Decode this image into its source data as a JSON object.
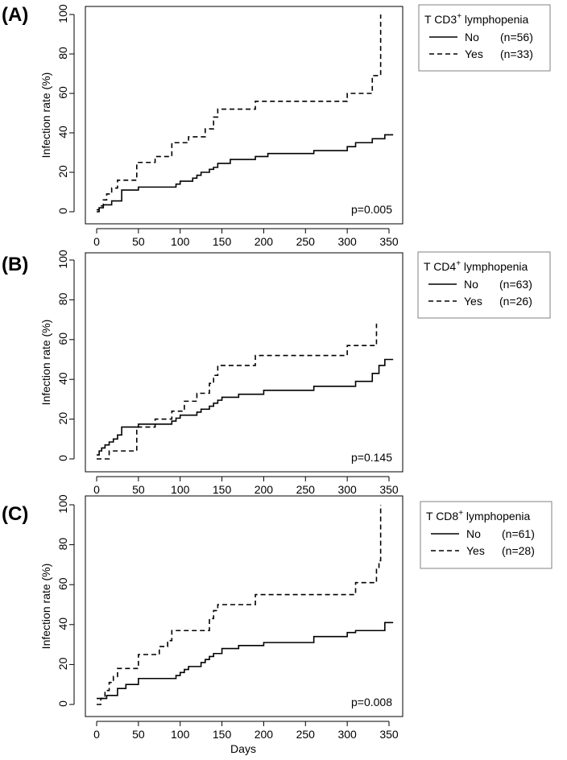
{
  "shared": {
    "xlabel": "Days",
    "ylabel": "Infection rate (%)",
    "xticks": [
      "0",
      "50",
      "100",
      "150",
      "200",
      "250",
      "300",
      "350"
    ],
    "yticks": [
      "0",
      "20",
      "40",
      "60",
      "80",
      "100"
    ]
  },
  "chart_data": [
    {
      "type": "line",
      "step": true,
      "panel": "(A)",
      "legend_title": "T CD3",
      "legend_sup": "+",
      "legend_suffix": " lymphopenia",
      "xlim": [
        0,
        350
      ],
      "ylim": [
        0,
        100
      ],
      "xlabel": "Days",
      "ylabel": "Infection rate (%)",
      "p_value": "p=0.005",
      "series": [
        {
          "name": "No",
          "n": "(n=56)",
          "style": "solid",
          "x": [
            0,
            3,
            8,
            12,
            18,
            25,
            30,
            38,
            50,
            70,
            85,
            95,
            100,
            105,
            110,
            115,
            120,
            125,
            130,
            135,
            140,
            145,
            150,
            160,
            170,
            190,
            205,
            220,
            240,
            260,
            290,
            300,
            310,
            330,
            345,
            355
          ],
          "y": [
            0,
            2,
            3.5,
            3.5,
            5.5,
            5.5,
            11,
            11,
            12.5,
            12.5,
            12.5,
            14,
            15.5,
            15.5,
            15.5,
            17,
            18.5,
            20,
            20,
            21.5,
            22.5,
            24.5,
            24.5,
            26.5,
            26.5,
            28,
            29.5,
            29.5,
            29.5,
            31,
            31,
            33,
            35,
            37,
            39,
            39
          ]
        },
        {
          "name": "Yes",
          "n": "(n=33)",
          "style": "dashed",
          "x": [
            0,
            3,
            8,
            12,
            18,
            25,
            40,
            48,
            60,
            70,
            80,
            90,
            105,
            110,
            120,
            130,
            140,
            145,
            150,
            160,
            175,
            190,
            205,
            220,
            250,
            300,
            305,
            330,
            335,
            340
          ],
          "y": [
            1,
            3,
            6,
            9,
            12,
            16,
            16,
            25,
            25,
            28,
            28,
            35,
            35,
            38,
            38,
            42,
            48,
            52,
            52,
            52,
            52,
            56,
            56,
            56,
            56,
            60,
            60,
            69,
            69,
            100
          ]
        }
      ]
    },
    {
      "type": "line",
      "step": true,
      "panel": "(B)",
      "legend_title": "T CD4",
      "legend_sup": "+",
      "legend_suffix": " lymphopenia",
      "xlim": [
        0,
        350
      ],
      "ylim": [
        0,
        100
      ],
      "xlabel": "Days",
      "ylabel": "Infection rate (%)",
      "p_value": "p=0.145",
      "series": [
        {
          "name": "No",
          "n": "(n=63)",
          "style": "solid",
          "x": [
            0,
            3,
            6,
            10,
            15,
            20,
            25,
            30,
            50,
            75,
            90,
            95,
            100,
            110,
            120,
            125,
            130,
            135,
            140,
            145,
            150,
            160,
            170,
            200,
            260,
            310,
            330,
            338,
            345,
            355
          ],
          "y": [
            2,
            4,
            5.5,
            7,
            8.5,
            10,
            12,
            16,
            17.5,
            17.5,
            19,
            20.5,
            22,
            22,
            23.5,
            25,
            25,
            26.5,
            28,
            29.5,
            31,
            31,
            32.5,
            34.5,
            36.5,
            39,
            43,
            47,
            50,
            50
          ]
        },
        {
          "name": "Yes",
          "n": "(n=26)",
          "style": "dashed",
          "x": [
            0,
            5,
            10,
            15,
            45,
            48,
            70,
            80,
            90,
            100,
            105,
            120,
            130,
            135,
            140,
            145,
            190,
            300,
            330,
            335
          ],
          "y": [
            0,
            0,
            0,
            4,
            4,
            16,
            20,
            20,
            24,
            24,
            29,
            33,
            33,
            38,
            42,
            47,
            52,
            57,
            57,
            68
          ]
        }
      ]
    },
    {
      "type": "line",
      "step": true,
      "panel": "(C)",
      "legend_title": "T CD8",
      "legend_sup": "+",
      "legend_suffix": " lymphopenia",
      "xlim": [
        0,
        350
      ],
      "ylim": [
        0,
        100
      ],
      "xlabel": "Days",
      "ylabel": "Infection rate (%)",
      "p_value": "p=0.008",
      "series": [
        {
          "name": "No",
          "n": "(n=61)",
          "style": "solid",
          "x": [
            0,
            5,
            12,
            20,
            25,
            35,
            50,
            90,
            95,
            100,
            105,
            110,
            120,
            125,
            130,
            135,
            140,
            150,
            170,
            200,
            260,
            300,
            310,
            345,
            355
          ],
          "y": [
            3,
            3,
            4.5,
            4.5,
            8,
            10,
            13,
            13,
            14.5,
            16,
            17.5,
            19,
            19,
            21,
            22.5,
            24,
            25.5,
            28,
            29.5,
            31,
            34,
            36,
            37,
            41,
            41
          ]
        },
        {
          "name": "Yes",
          "n": "(n=28)",
          "style": "dashed",
          "x": [
            0,
            5,
            10,
            15,
            20,
            25,
            45,
            50,
            65,
            75,
            85,
            90,
            130,
            135,
            140,
            145,
            190,
            300,
            310,
            335,
            338,
            340
          ],
          "y": [
            0,
            3,
            7,
            11,
            14,
            18,
            18,
            25,
            25,
            29,
            32,
            37,
            37,
            43,
            47,
            50,
            55,
            55,
            61,
            68,
            72,
            100
          ]
        }
      ]
    }
  ]
}
